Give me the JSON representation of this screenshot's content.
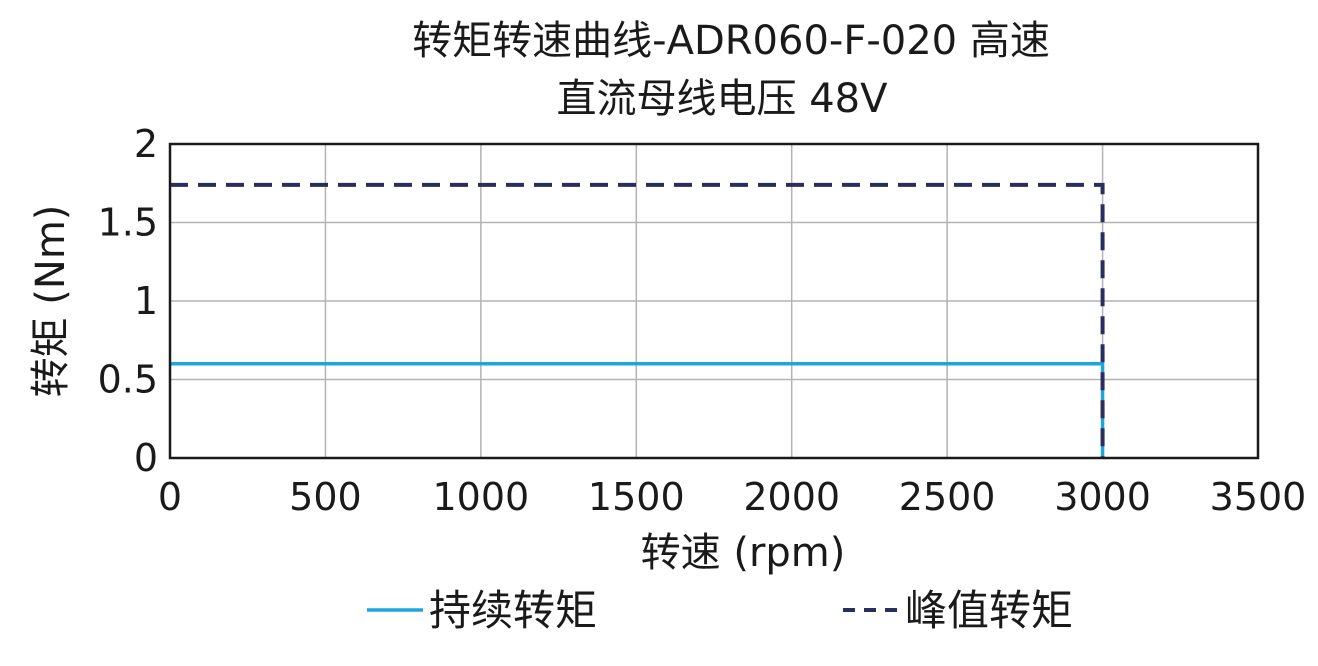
{
  "chart_data": {
    "type": "line",
    "title": "转矩转速曲线-ADR060-F-020 高速",
    "subtitle": "直流母线电压 48V",
    "xlabel": "转速 (rpm)",
    "ylabel": "转矩 (Nm)",
    "xlim": [
      0,
      3500
    ],
    "ylim": [
      0,
      2
    ],
    "x_ticks": [
      0,
      500,
      1000,
      1500,
      2000,
      2500,
      3000,
      3500
    ],
    "x_tick_labels": [
      "0",
      "500",
      "1000",
      "1500",
      "2000",
      "2500",
      "3000",
      "3500"
    ],
    "y_ticks": [
      0,
      0.5,
      1,
      1.5,
      2
    ],
    "y_tick_labels": [
      "0",
      "0.5",
      "1",
      "1.5",
      "2"
    ],
    "grid": true,
    "legend_position": "bottom",
    "series": [
      {
        "name": "持续转矩",
        "color": "#1ea6dc",
        "style": "solid",
        "x": [
          0,
          3000,
          3000
        ],
        "y": [
          0.6,
          0.6,
          0
        ]
      },
      {
        "name": "峰值转矩",
        "color": "#2b2d5e",
        "style": "dashed",
        "x": [
          0,
          3000,
          3000
        ],
        "y": [
          1.74,
          1.74,
          0
        ]
      }
    ]
  }
}
